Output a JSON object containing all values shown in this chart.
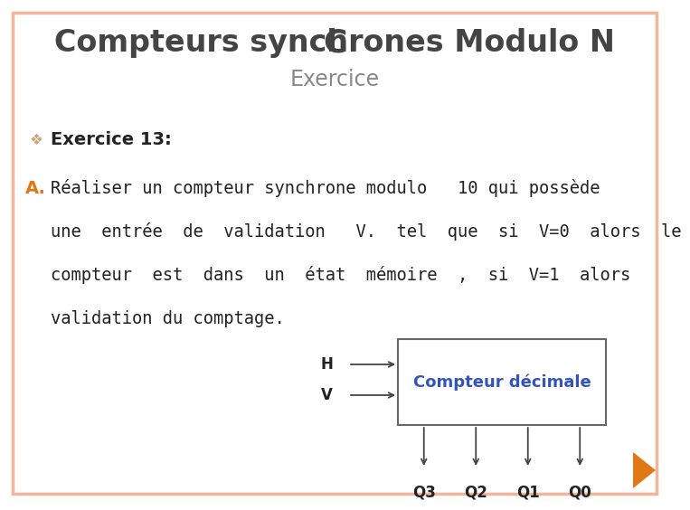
{
  "title_main_caps": "C",
  "title_main": "OMPTEURS SYNCHRONES M",
  "title_main2": "ODULO N",
  "title_sub": "E",
  "title_sub2": "XERCICE",
  "bullet_text": "Exercice 13:",
  "letter_A": "A.",
  "line1": "Réaliser un compteur synchrone modulo   10 qui possède",
  "line2": "une  entrée  de  validation   V.  tel  que  si  V=0  alors  le",
  "line3": "compteur  est  dans  un  état  mémoire  ,  si  V=1  alors",
  "line4": "validation du comptage.",
  "box_label": "Compteur décimale",
  "inputs": [
    "H",
    "V"
  ],
  "outputs": [
    "Q3",
    "Q2",
    "Q1",
    "Q0"
  ],
  "bg_color": "#ffffff",
  "border_color": "#f2b49a",
  "title_color": "#444444",
  "sub_title_color": "#888888",
  "bullet_color": "#c8a87a",
  "A_color": "#e07818",
  "text_color": "#222222",
  "box_border_color": "#666666",
  "box_bg_color": "#ffffff",
  "box_text_color": "#3355bb",
  "arrow_color": "#444444",
  "output_label_color": "#222222",
  "triangle_color": "#e07818"
}
